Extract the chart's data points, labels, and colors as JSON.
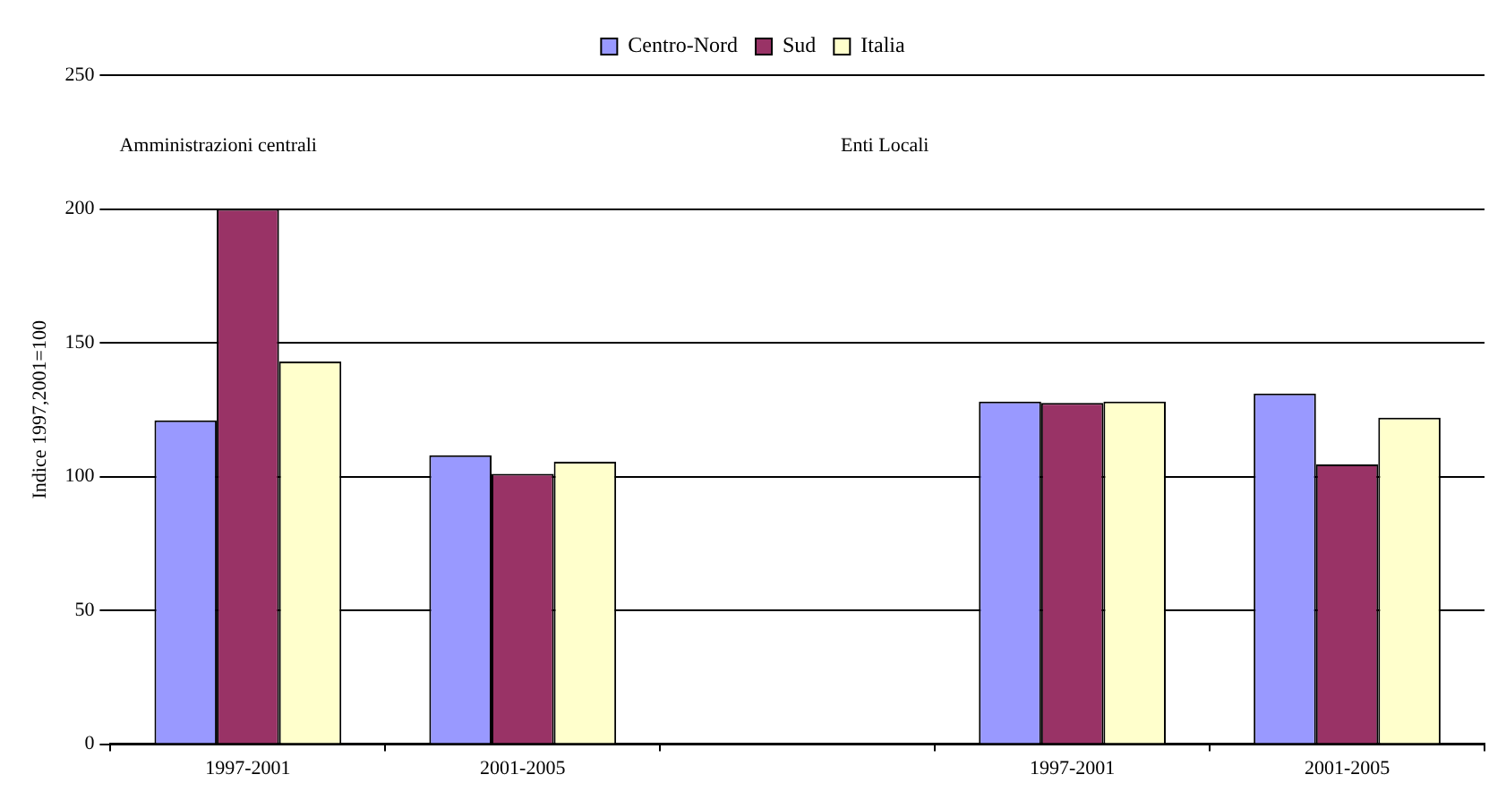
{
  "chart_data": {
    "type": "bar",
    "ylabel": "Indice 1997,2001=100",
    "categories": [
      "1997-2001",
      "2001-2005",
      null,
      "1997-2001",
      "2001-2005"
    ],
    "series": [
      {
        "name": "Centro-Nord",
        "color": "#9999ff",
        "values": [
          121,
          108,
          null,
          128,
          131
        ]
      },
      {
        "name": "Sud",
        "color": "#993366",
        "values": [
          200,
          101,
          null,
          127.5,
          104.5
        ]
      },
      {
        "name": "Italia",
        "color": "#ffffcc",
        "values": [
          143,
          105.5,
          null,
          128,
          122
        ]
      }
    ],
    "ylim": [
      0,
      250
    ],
    "yticks": [
      0,
      50,
      100,
      150,
      200,
      250
    ],
    "grid": "y",
    "legend": "top",
    "annotations": [
      "Amministrazioni centrali",
      "Enti Locali"
    ]
  }
}
